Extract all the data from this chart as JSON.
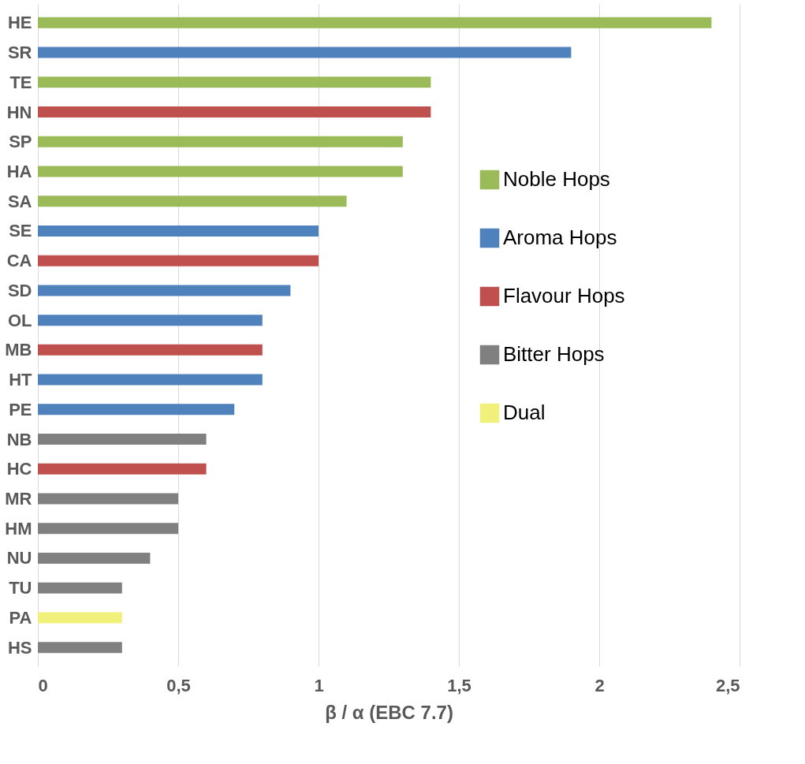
{
  "chart_data": {
    "type": "bar",
    "orientation": "horizontal",
    "xlabel": "β / α (EBC 7.7)",
    "categories": [
      "HE",
      "SR",
      "TE",
      "HN",
      "SP",
      "HA",
      "SA",
      "SE",
      "CA",
      "SD",
      "OL",
      "MB",
      "HT",
      "PE",
      "NB",
      "HC",
      "MR",
      "HM",
      "NU",
      "TU",
      "PA",
      "HS"
    ],
    "series": [
      {
        "name": "Noble Hops",
        "color": "#9bbb59",
        "values": [
          2.4,
          null,
          1.4,
          null,
          1.3,
          1.3,
          1.1,
          null,
          null,
          null,
          null,
          null,
          null,
          null,
          null,
          null,
          null,
          null,
          null,
          null,
          null,
          null
        ]
      },
      {
        "name": "Aroma Hops",
        "color": "#4f81bd",
        "values": [
          null,
          1.9,
          null,
          null,
          null,
          null,
          null,
          1.0,
          null,
          0.9,
          0.8,
          null,
          0.8,
          0.7,
          null,
          null,
          null,
          null,
          null,
          null,
          null,
          null
        ]
      },
      {
        "name": "Flavour Hops",
        "color": "#c0504d",
        "values": [
          null,
          null,
          null,
          1.4,
          null,
          null,
          null,
          null,
          1.0,
          null,
          null,
          0.8,
          null,
          null,
          null,
          0.6,
          null,
          null,
          null,
          null,
          null,
          null
        ]
      },
      {
        "name": "Bitter Hops",
        "color": "#808080",
        "values": [
          null,
          null,
          null,
          null,
          null,
          null,
          null,
          null,
          null,
          null,
          null,
          null,
          null,
          null,
          0.6,
          null,
          0.5,
          0.5,
          0.4,
          0.3,
          null,
          0.3
        ]
      },
      {
        "name": "Dual",
        "color": "#f0f07a",
        "values": [
          null,
          null,
          null,
          null,
          null,
          null,
          null,
          null,
          null,
          null,
          null,
          null,
          null,
          null,
          null,
          null,
          null,
          null,
          null,
          null,
          0.3,
          null
        ]
      }
    ],
    "xlim": [
      0,
      2.5
    ],
    "xticks": [
      0,
      {
        "value": 0.5,
        "label": "0,5"
      },
      1,
      {
        "value": 1.5,
        "label": "1,5"
      },
      2,
      {
        "value": 2.5,
        "label": "2,5"
      }
    ],
    "grid": "x",
    "legend": "right"
  }
}
